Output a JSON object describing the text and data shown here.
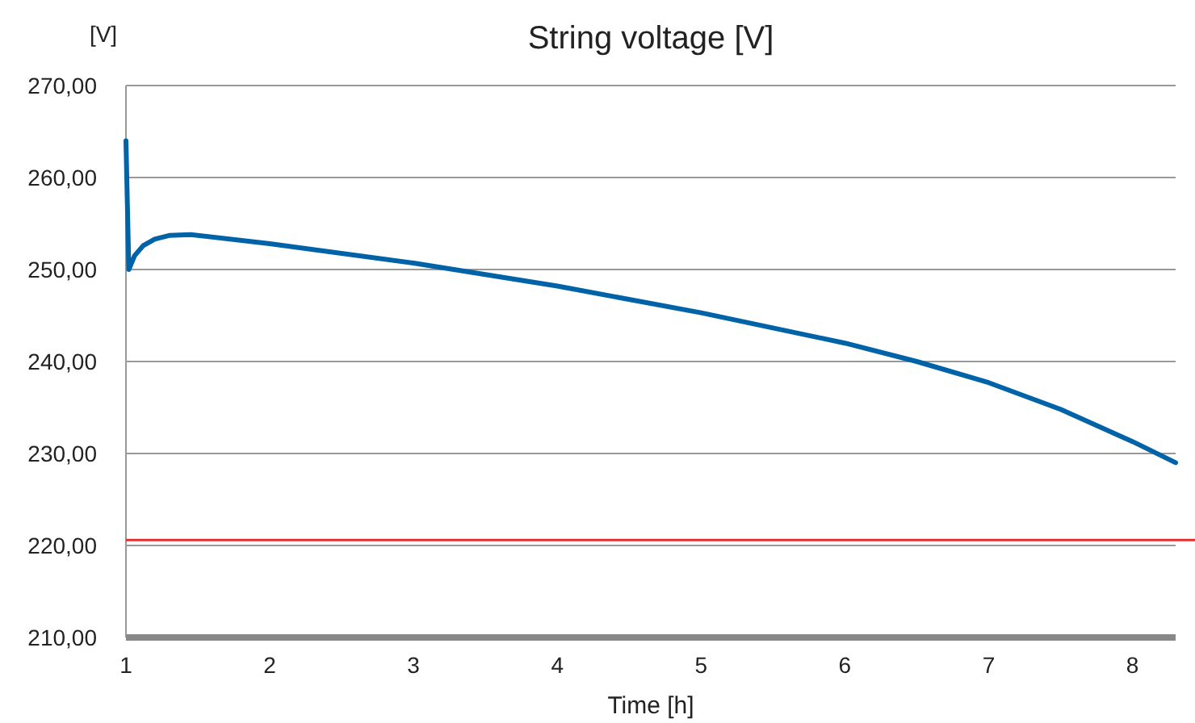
{
  "chart_data": {
    "type": "line",
    "title": "String voltage [V]",
    "xlabel": "Time [h]",
    "ylabel": "[V]",
    "x": [
      1,
      1.02,
      1.06,
      1.12,
      1.2,
      1.3,
      1.45,
      2,
      3,
      4,
      5,
      6,
      6.5,
      7,
      7.5,
      8,
      8.3
    ],
    "series": [
      {
        "color": "#0063a8",
        "values": [
          264,
          250,
          251.5,
          252.6,
          253.3,
          253.7,
          253.8,
          252.8,
          250.7,
          248.2,
          245.3,
          242,
          240,
          237.7,
          234.8,
          231.3,
          229
        ]
      }
    ],
    "xlim": [
      1,
      8.3
    ],
    "xticks": [
      1,
      2,
      3,
      4,
      5,
      6,
      7,
      8
    ],
    "ylim": [
      210,
      270
    ],
    "yticks": [
      {
        "value": 210,
        "label": "210,00"
      },
      {
        "value": 220,
        "label": "220,00"
      },
      {
        "value": 230,
        "label": "230,00"
      },
      {
        "value": 240,
        "label": "240,00"
      },
      {
        "value": 250,
        "label": "250,00"
      },
      {
        "value": 260,
        "label": "260,00"
      },
      {
        "value": 270,
        "label": "270,00"
      }
    ],
    "ref_lines": [
      {
        "axis": "y",
        "value": 220.6,
        "color": "#e03030"
      }
    ],
    "grid": "y",
    "marker": "none",
    "line_style": "solid"
  }
}
